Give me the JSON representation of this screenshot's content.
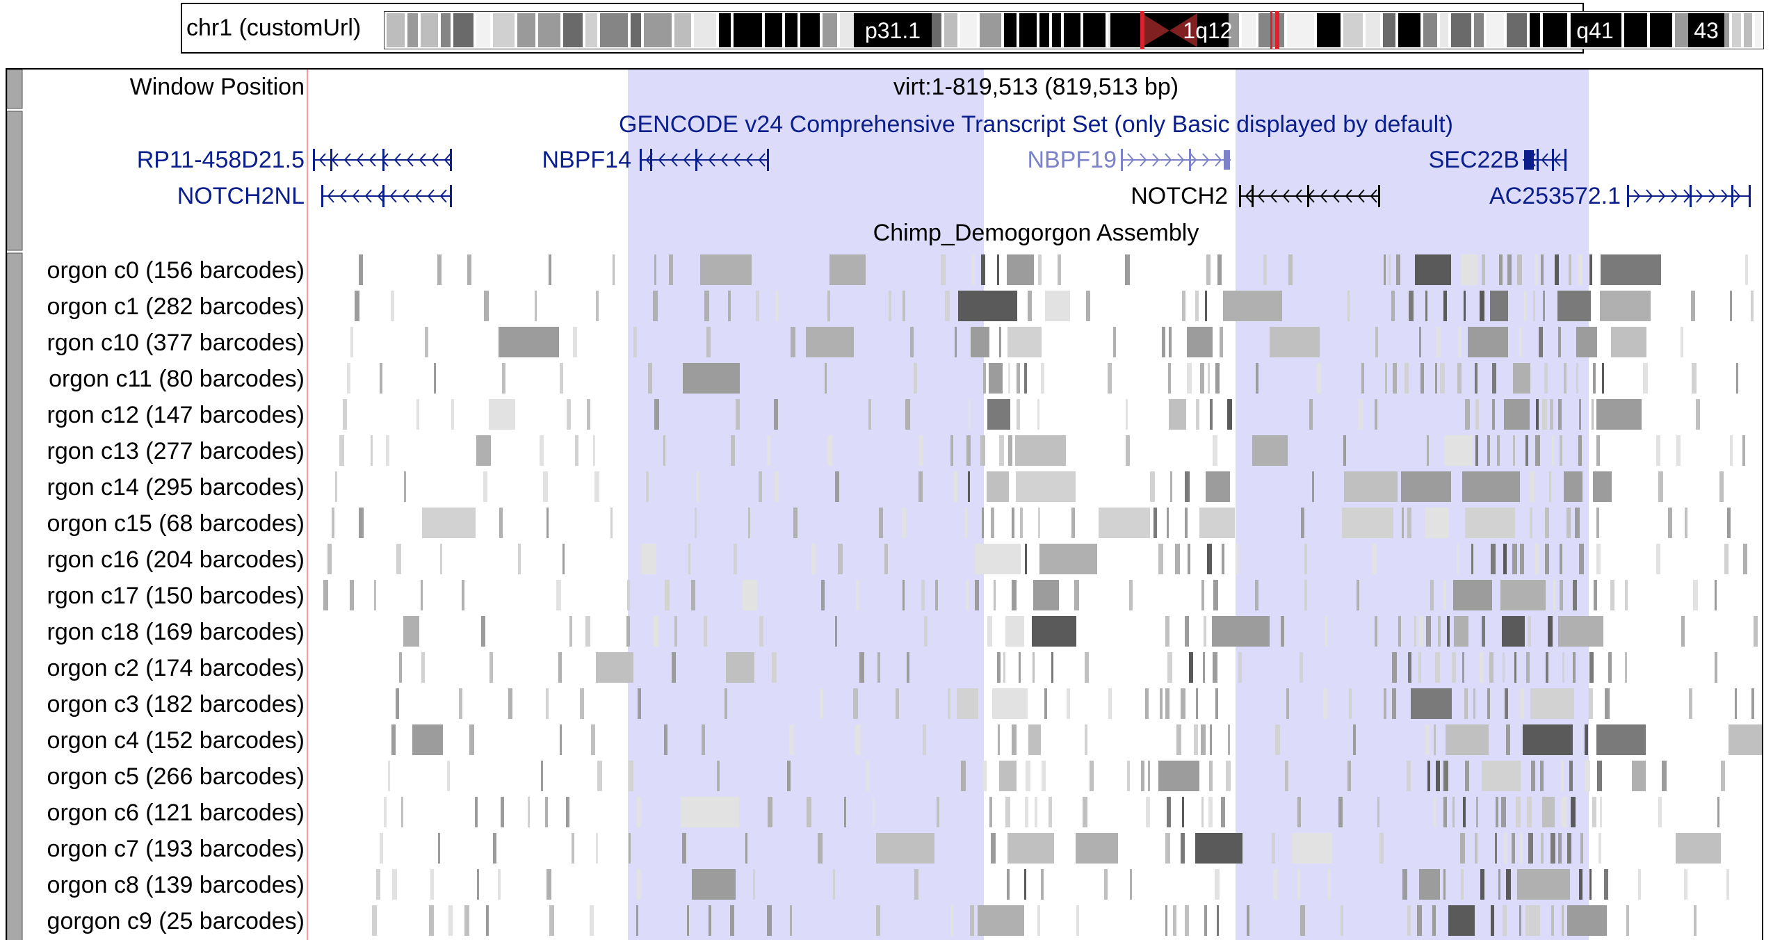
{
  "ideogram": {
    "chrom_label": "chr1 (customUrl)",
    "band_labels": [
      "p31.1",
      "1q12",
      "q41",
      "43"
    ]
  },
  "window_position": {
    "label": "Window Position",
    "value": "virt:1-819,513 (819,513 bp)"
  },
  "gene_track": {
    "title": "GENCODE v24 Comprehensive Transcript Set (only Basic displayed by default)",
    "genes": [
      "RP11-458D21.5",
      "NBPF14",
      "NBPF19",
      "SEC22B",
      "NOTCH2NL",
      "NOTCH2",
      "AC253572.1"
    ]
  },
  "assembly_track": {
    "title": "Chimp_Demogorgon Assembly",
    "rows": [
      "orgon c0 (156 barcodes)",
      "orgon c1 (282 barcodes)",
      "rgon c10 (377 barcodes)",
      "orgon c11 (80 barcodes)",
      "rgon c12 (147 barcodes)",
      "rgon c13 (277 barcodes)",
      "rgon c14 (295 barcodes)",
      "orgon c15 (68 barcodes)",
      "rgon c16 (204 barcodes)",
      "rgon c17 (150 barcodes)",
      "rgon c18 (169 barcodes)",
      "orgon c2 (174 barcodes)",
      "orgon c3 (182 barcodes)",
      "orgon c4 (152 barcodes)",
      "orgon c5 (266 barcodes)",
      "orgon c6 (121 barcodes)",
      "orgon c7 (193 barcodes)",
      "orgon c8 (139 barcodes)",
      "gorgon c9 (25 barcodes)"
    ]
  },
  "colors": {
    "highlight": "#dcdcfa",
    "gene_dark": "#0a1e8c",
    "gene_light": "#7b82c8",
    "gene_black": "#000000",
    "centromere": "#e0202a",
    "guideline": "#ff9999"
  }
}
